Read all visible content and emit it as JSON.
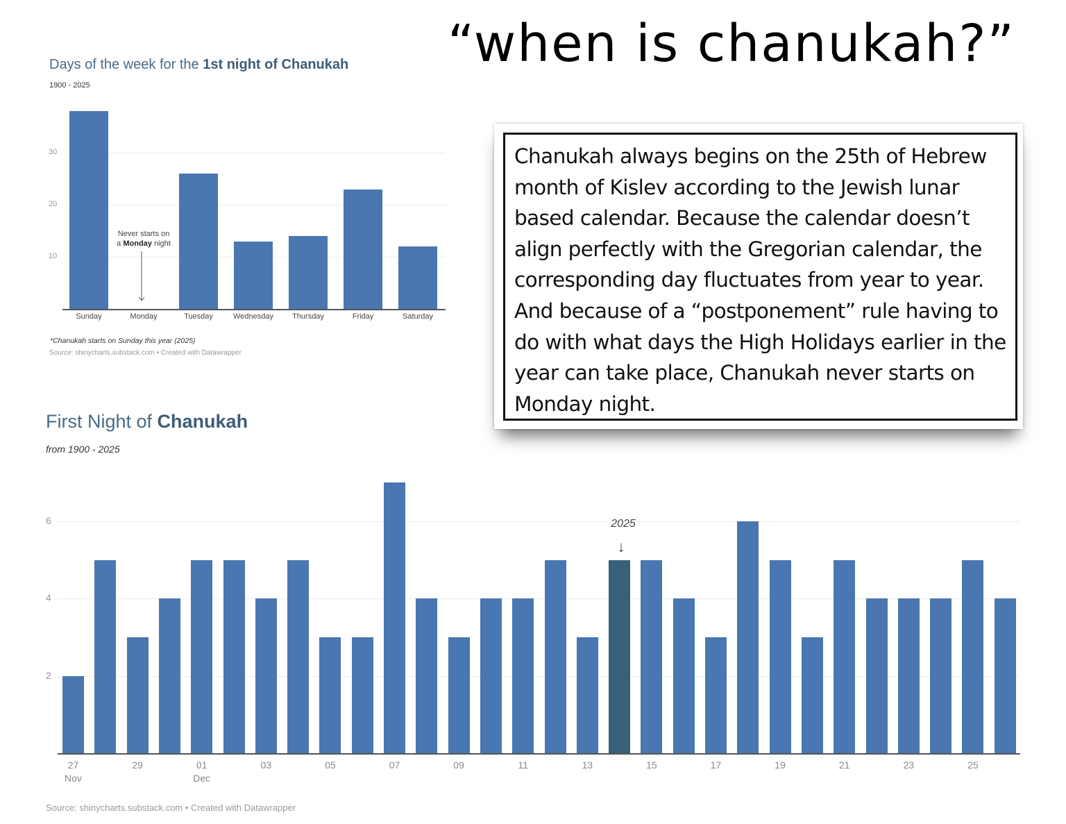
{
  "headline": "“when is chanukah?”",
  "callout": {
    "text": "Chanukah always begins on the 25th of Hebrew month of Kislev according to the Jewish lunar based calendar. Because the calendar doesn’t align perfectly with the Gregorian calendar, the corresponding day fluctuates from year to year. And because of a “postponement” rule having to do with what days the High Holidays earlier in the year can take place, Chanukah never starts on Monday night."
  },
  "chart1": {
    "title_regular": "Days of the week for the ",
    "title_bold": "1st night of Chanukah",
    "subtitle": "1900 - 2025",
    "annotation_line1": "Never starts on",
    "annotation_line2_prefix": "a ",
    "annotation_line2_bold": "Monday",
    "annotation_line2_suffix": " night",
    "footnote": "*Chanukah starts on Sunday this year (2025)",
    "source": "Source: shinycharts.substack.com • Created with Datawrapper"
  },
  "chart2": {
    "title_regular": "First Night of ",
    "title_bold": "Chanukah",
    "subtitle": "from 1900 - 2025",
    "annotation": "2025",
    "annotation_arrow": "↓",
    "source": "Source: shinycharts.substack.com • Created with Datawrapper"
  },
  "colors": {
    "bar": "#4a76b1",
    "highlight_bar": "#386078",
    "title": "#4a6a86"
  },
  "chart_data": [
    {
      "type": "bar",
      "title": "Days of the week for the 1st night of Chanukah",
      "subtitle": "1900 - 2025",
      "categories": [
        "Sunday",
        "Monday",
        "Tuesday",
        "Wednesday",
        "Thursday",
        "Friday",
        "Saturday"
      ],
      "values": [
        38,
        0,
        26,
        13,
        14,
        23,
        12
      ],
      "yticks": [
        10,
        20,
        30
      ],
      "ylim": [
        0,
        38
      ],
      "grid": true,
      "annotations": [
        "Never starts on a Monday night"
      ],
      "footnote": "*Chanukah starts on Sunday this year (2025)"
    },
    {
      "type": "bar",
      "title": "First Night of Chanukah",
      "subtitle": "from 1900 - 2025",
      "categories": [
        "Nov 27",
        "Nov 28",
        "Nov 29",
        "Nov 30",
        "Dec 01",
        "Dec 02",
        "Dec 03",
        "Dec 04",
        "Dec 05",
        "Dec 06",
        "Dec 07",
        "Dec 08",
        "Dec 09",
        "Dec 10",
        "Dec 11",
        "Dec 12",
        "Dec 13",
        "Dec 14",
        "Dec 15",
        "Dec 16",
        "Dec 17",
        "Dec 18",
        "Dec 19",
        "Dec 20",
        "Dec 21",
        "Dec 22",
        "Dec 23",
        "Dec 24",
        "Dec 25",
        "Dec 26"
      ],
      "values": [
        2,
        5,
        3,
        4,
        5,
        5,
        4,
        5,
        3,
        3,
        7,
        4,
        3,
        4,
        4,
        5,
        3,
        5,
        5,
        4,
        3,
        6,
        5,
        3,
        5,
        4,
        4,
        4,
        5,
        4
      ],
      "highlight": {
        "category": "Dec 14",
        "label": "2025"
      },
      "xtick_labels": [
        "27\nNov",
        "29",
        "01\nDec",
        "03",
        "05",
        "07",
        "09",
        "11",
        "13",
        "15",
        "17",
        "19",
        "21",
        "23",
        "25"
      ],
      "yticks": [
        2,
        4,
        6
      ],
      "ylim": [
        0,
        7
      ],
      "grid": true
    }
  ]
}
